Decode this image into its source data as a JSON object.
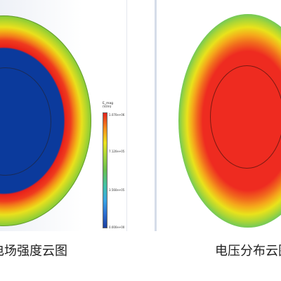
{
  "left_panel": {
    "caption": "电场强度云图",
    "legend": {
      "title": "E_mag",
      "unit": "(V/m)",
      "ticks": [
        "1.070e+06",
        "7.120e+05",
        "3.560e+05",
        "0.000e+00"
      ]
    }
  },
  "right_panel": {
    "caption": "电压分布云图"
  },
  "colors": {
    "blue": "#0b3a9c",
    "red": "#e81f1a",
    "green": "#6abe3d",
    "yellow": "#e9e01d"
  }
}
